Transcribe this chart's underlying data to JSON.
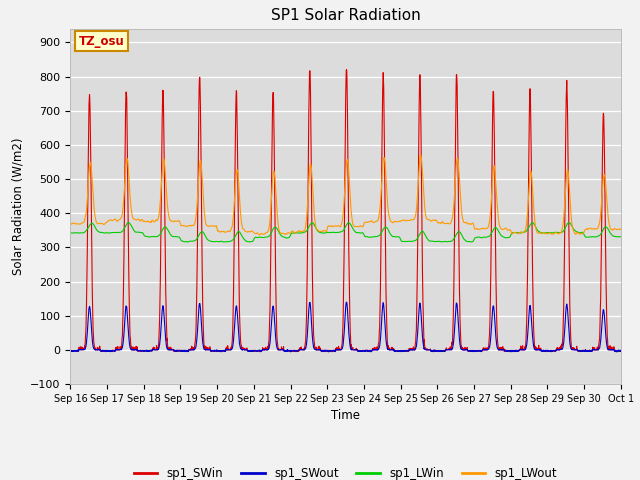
{
  "title": "SP1 Solar Radiation",
  "xlabel": "Time",
  "ylabel": "Solar Radiation (W/m2)",
  "ylim": [
    -100,
    940
  ],
  "yticks": [
    -100,
    0,
    100,
    200,
    300,
    400,
    500,
    600,
    700,
    800,
    900
  ],
  "bg_color": "#dcdcdc",
  "fig_bg": "#f2f2f2",
  "annotation_text": "TZ_osu",
  "annotation_bg": "#ffffcc",
  "annotation_border": "#cc8800",
  "legend": [
    "sp1_SWin",
    "sp1_SWout",
    "sp1_LWin",
    "sp1_LWout"
  ],
  "line_colors": [
    "#dd0000",
    "#0000cc",
    "#00cc00",
    "#ff9900"
  ],
  "n_days": 15,
  "start_day": 16,
  "title_fontsize": 11,
  "sw_peaks": [
    745,
    762,
    762,
    800,
    755,
    760,
    822,
    822,
    800,
    800,
    810,
    760,
    755,
    780,
    690
  ]
}
